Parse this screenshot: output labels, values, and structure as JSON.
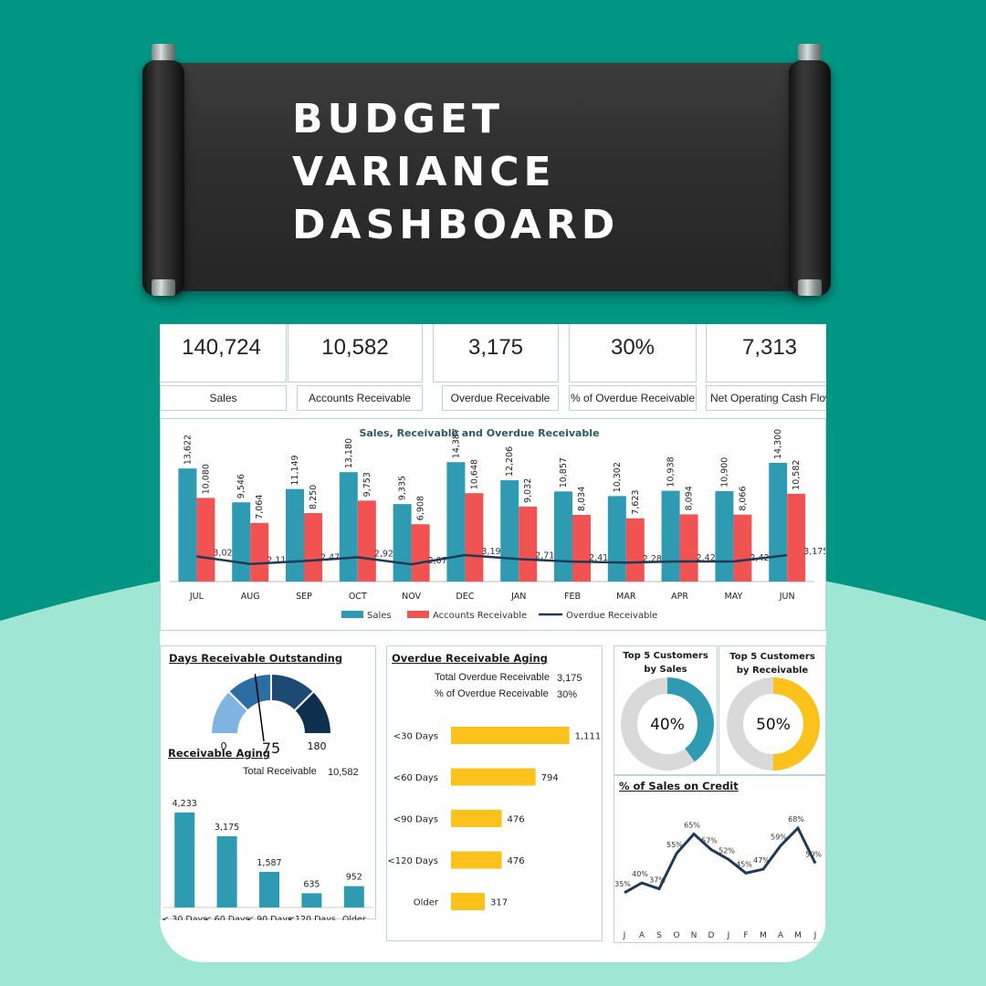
{
  "banner": {
    "title_lines": [
      "BUDGET",
      "VARIANCE",
      "DASHBOARD"
    ]
  },
  "colors": {
    "teal_bg": "#009683",
    "mint_bg": "#9fe6d4",
    "sales": "#2f9bb3",
    "receivable": "#f05352",
    "overdue_line": "#1e3a56",
    "aging_bar": "#fbc21b",
    "donut_track": "#d9d9d9"
  },
  "kpis": [
    {
      "value": "140,724",
      "label": "Sales",
      "icon": "money-icon"
    },
    {
      "value": "10,582",
      "label": "Accounts Receivable",
      "icon": "hand-coin-icon"
    },
    {
      "value": "3,175",
      "label": "Overdue Receivable",
      "icon": "phone-dollar-icon"
    },
    {
      "value": "30%",
      "label": "% of Overdue Receivable",
      "icon": "gear-percent-icon"
    },
    {
      "value": "7,313",
      "label": "Net Operating Cash Flow",
      "icon": "cash-icon"
    }
  ],
  "chart_data": [
    {
      "type": "bar",
      "title": "Sales, Receivable and Overdue Receivable",
      "categories": [
        "JUL",
        "AUG",
        "SEP",
        "OCT",
        "NOV",
        "DEC",
        "JAN",
        "FEB",
        "MAR",
        "APR",
        "MAY",
        "JUN"
      ],
      "series": [
        {
          "name": "Sales",
          "type": "bar",
          "values": [
            13622,
            9546,
            11149,
            13180,
            9335,
            14387,
            12206,
            10857,
            10302,
            10938,
            10900,
            14300
          ],
          "labels": [
            "13,622",
            "9,546",
            "11,149",
            "13,180",
            "9,335",
            "14,387",
            "12,206",
            "10,857",
            "10,302",
            "10,938",
            "10,900",
            "14,300"
          ]
        },
        {
          "name": "Accounts Receivable",
          "type": "bar",
          "values": [
            10080,
            7064,
            8250,
            9753,
            6908,
            10648,
            9032,
            8034,
            7623,
            8094,
            8066,
            10582
          ],
          "labels": [
            "10,080",
            "7,064",
            "8,250",
            "9,753",
            "6,908",
            "10,648",
            "9,032",
            "8,034",
            "7,623",
            "8,094",
            "8,066",
            "10,582"
          ]
        },
        {
          "name": "Overdue Receivable",
          "type": "line",
          "values": [
            3024,
            2119,
            2475,
            2926,
            2072,
            3194,
            2710,
            2410,
            2287,
            2428,
            2420,
            3175
          ],
          "labels": [
            "3,024",
            "2,119",
            "2,475",
            "2,926",
            "2,072",
            "3,194",
            "2,710",
            "2,410",
            "2,287",
            "2,428",
            "2,420",
            "3,175"
          ]
        }
      ],
      "legend_position": "bottom",
      "ylim": [
        0,
        16500
      ]
    },
    {
      "type": "gauge",
      "title": "Days Receivable Outstanding",
      "value": 75,
      "min": 0,
      "max": 180,
      "value_label": "75",
      "min_label": "0",
      "max_label": "180"
    },
    {
      "type": "bar",
      "title": "Receivable Aging",
      "total_label": "Total Receivable",
      "total_value": "10,582",
      "categories": [
        "< 30 Days",
        "< 60 Days",
        "< 90 Days",
        "<120 Days",
        "Older"
      ],
      "values": [
        4233,
        3175,
        1587,
        635,
        952
      ],
      "labels": [
        "4,233",
        "3,175",
        "1,587",
        "635",
        "952"
      ],
      "ylim": [
        0,
        4800
      ]
    },
    {
      "type": "bar",
      "orientation": "horizontal",
      "title": "Overdue Receivable Aging",
      "summary": [
        {
          "label": "Total  Overdue Receivable",
          "value": "3,175"
        },
        {
          "label": "% of Overdue Receivable",
          "value": "30%"
        }
      ],
      "categories": [
        "<30 Days",
        "<60 Days",
        "<90 Days",
        "<120 Days",
        "Older"
      ],
      "values": [
        1111,
        794,
        476,
        476,
        317
      ],
      "labels": [
        "1,111",
        "794",
        "476",
        "476",
        "317"
      ],
      "xlim": [
        0,
        1200
      ]
    },
    {
      "type": "pie",
      "title_lines": [
        "Top 5 Customers",
        "by Sales"
      ],
      "value": 0.4,
      "center_label": "40%",
      "color": "#2f9bb3"
    },
    {
      "type": "pie",
      "title_lines": [
        "Top 5 Customers",
        "by Receivable"
      ],
      "value": 0.5,
      "center_label": "50%",
      "color": "#fbc21b"
    },
    {
      "type": "line",
      "title": "% of Sales on Credit",
      "categories": [
        "J",
        "A",
        "S",
        "O",
        "N",
        "D",
        "J",
        "F",
        "M",
        "A",
        "M",
        "J"
      ],
      "values": [
        35,
        40,
        37,
        55,
        65,
        57,
        52,
        45,
        47,
        59,
        68,
        50
      ],
      "labels": [
        "35%",
        "40%",
        "37%",
        "55%",
        "65%",
        "57%",
        "52%",
        "45%",
        "47%",
        "59%",
        "68%",
        "50%"
      ],
      "ylim": [
        20,
        75
      ]
    }
  ]
}
